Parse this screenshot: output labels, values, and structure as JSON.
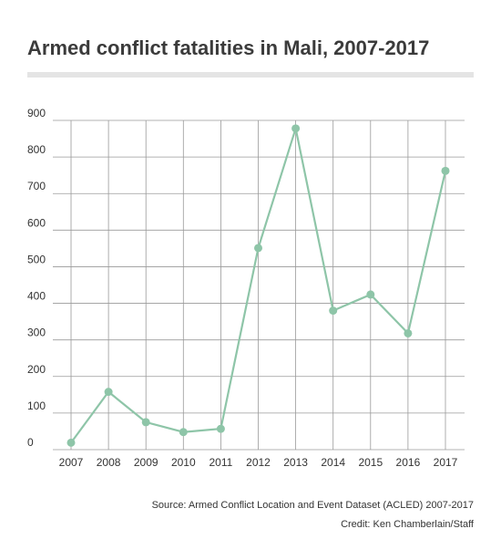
{
  "header": {
    "title": "Armed conflict fatalities in Mali, 2007-2017"
  },
  "footer": {
    "source": "Source: Armed Conflict Location and Event Dataset (ACLED) 2007-2017",
    "credit": "Credit: Ken Chamberlain/Staff"
  },
  "colors": {
    "line": "#8ec5a8",
    "grid": "#9a9a9a",
    "title_rule": "#e4e4e4",
    "text": "#333333"
  },
  "chart_data": {
    "type": "line",
    "title": "Armed conflict fatalities in Mali, 2007-2017",
    "xlabel": "",
    "ylabel": "",
    "x": [
      "2007",
      "2008",
      "2009",
      "2010",
      "2011",
      "2012",
      "2013",
      "2014",
      "2015",
      "2016",
      "2017"
    ],
    "series": [
      {
        "values": [
          19,
          158,
          75,
          48,
          57,
          551,
          878,
          380,
          424,
          318,
          762
        ]
      }
    ],
    "ylim": [
      0,
      900
    ],
    "yticks": [
      0,
      100,
      200,
      300,
      400,
      500,
      600,
      700,
      800,
      900
    ],
    "grid": true,
    "legend": "none",
    "markers": true
  }
}
